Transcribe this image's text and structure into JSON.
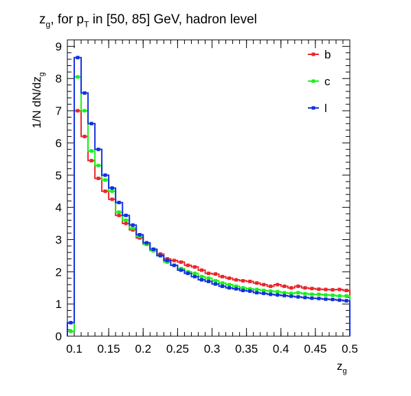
{
  "chart_data": {
    "type": "step-histogram",
    "title": {
      "main": "z",
      "sub": "g",
      "middle": ", for p",
      "sub2": "T",
      "rest": " in [50, 85] GeV, hadron level"
    },
    "xlabel": {
      "main": "z",
      "sub": "g"
    },
    "ylabel": {
      "main": "1/N dN/dz",
      "sub": "g"
    },
    "xlim": [
      0.09,
      0.5
    ],
    "ylim": [
      0,
      9.2
    ],
    "x_ticks": [
      "0.1",
      "0.15",
      "0.2",
      "0.25",
      "0.3",
      "0.35",
      "0.4",
      "0.45",
      "0.5"
    ],
    "x_tick_values": [
      0.1,
      0.15,
      0.2,
      0.25,
      0.3,
      0.35,
      0.4,
      0.45,
      0.5
    ],
    "y_ticks": [
      "0",
      "1",
      "2",
      "3",
      "4",
      "5",
      "6",
      "7",
      "8",
      "9"
    ],
    "y_tick_values": [
      0,
      1,
      2,
      3,
      4,
      5,
      6,
      7,
      8,
      9
    ],
    "bin_edges": [
      0.09,
      0.1,
      0.11,
      0.12,
      0.13,
      0.14,
      0.15,
      0.16,
      0.17,
      0.18,
      0.19,
      0.2,
      0.21,
      0.22,
      0.23,
      0.24,
      0.25,
      0.26,
      0.27,
      0.28,
      0.29,
      0.3,
      0.31,
      0.32,
      0.33,
      0.34,
      0.35,
      0.36,
      0.37,
      0.38,
      0.39,
      0.4,
      0.41,
      0.42,
      0.43,
      0.44,
      0.45,
      0.46,
      0.47,
      0.48,
      0.49,
      0.5
    ],
    "series": [
      {
        "name": "b",
        "color": "#e8262a",
        "values": [
          0.15,
          7.0,
          6.2,
          5.45,
          4.9,
          4.5,
          4.25,
          3.75,
          3.5,
          3.3,
          3.05,
          2.85,
          2.7,
          2.55,
          2.4,
          2.35,
          2.3,
          2.2,
          2.15,
          2.05,
          1.95,
          1.93,
          1.85,
          1.8,
          1.75,
          1.72,
          1.7,
          1.65,
          1.6,
          1.55,
          1.6,
          1.55,
          1.5,
          1.55,
          1.5,
          1.48,
          1.46,
          1.45,
          1.44,
          1.45,
          1.42
        ]
      },
      {
        "name": "c",
        "color": "#18f018",
        "values": [
          0.15,
          8.05,
          7.0,
          5.75,
          5.3,
          4.85,
          4.5,
          3.85,
          3.6,
          3.35,
          3.1,
          2.85,
          2.65,
          2.5,
          2.3,
          2.2,
          2.1,
          2.0,
          1.95,
          1.85,
          1.8,
          1.72,
          1.65,
          1.6,
          1.55,
          1.5,
          1.47,
          1.45,
          1.42,
          1.4,
          1.38,
          1.35,
          1.33,
          1.35,
          1.32,
          1.3,
          1.3,
          1.28,
          1.27,
          1.25,
          1.25
        ]
      },
      {
        "name": "l",
        "color": "#1430e0",
        "values": [
          0.42,
          8.65,
          7.55,
          6.6,
          5.8,
          5.0,
          4.6,
          4.15,
          3.75,
          3.45,
          3.15,
          2.9,
          2.7,
          2.5,
          2.35,
          2.2,
          2.05,
          1.95,
          1.85,
          1.75,
          1.7,
          1.62,
          1.55,
          1.5,
          1.47,
          1.42,
          1.4,
          1.35,
          1.33,
          1.3,
          1.28,
          1.26,
          1.24,
          1.22,
          1.2,
          1.18,
          1.17,
          1.15,
          1.14,
          1.12,
          1.1
        ]
      }
    ],
    "legend": {
      "position": "top-right"
    },
    "grid": false
  }
}
